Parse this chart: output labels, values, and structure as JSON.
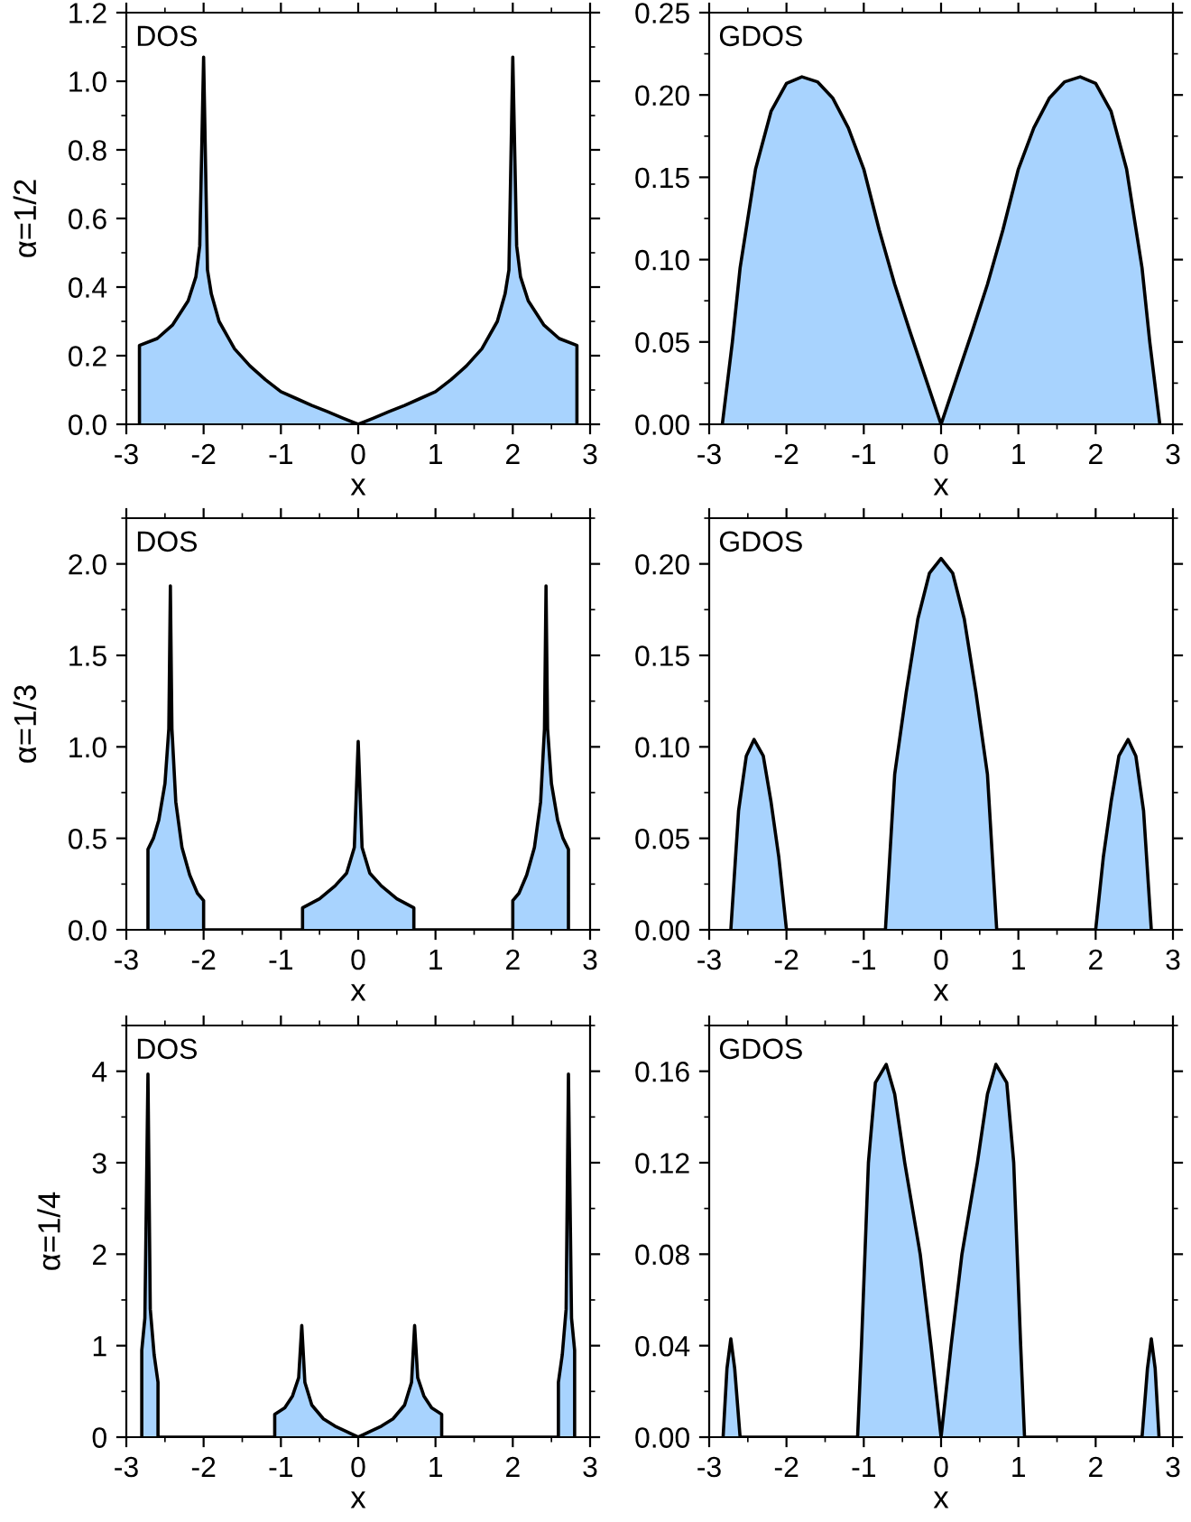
{
  "chart_data": [
    {
      "type": "area",
      "title": "DOS",
      "xlabel": "x",
      "ylabel": "α=1/2",
      "xlim": [
        -3,
        3
      ],
      "ylim": [
        0,
        1.2
      ],
      "xticks": [
        -3,
        -2,
        -1,
        0,
        1,
        2,
        3
      ],
      "yticks": [
        {
          "value": 0,
          "label": "0.0"
        },
        {
          "value": 0.2,
          "label": "0.2"
        },
        {
          "value": 0.4,
          "label": "0.4"
        },
        {
          "value": 0.6,
          "label": "0.6"
        },
        {
          "value": 0.8,
          "label": "0.8"
        },
        {
          "value": 1,
          "label": "1.0"
        },
        {
          "value": 1.2,
          "label": "1.2"
        }
      ],
      "x": [
        -2.83,
        -2.83,
        -2.6,
        -2.4,
        -2.2,
        -2.1,
        -2.05,
        -2.0,
        -1.95,
        -1.9,
        -1.8,
        -1.6,
        -1.4,
        -1.2,
        -1.0,
        -0.8,
        -0.6,
        -0.4,
        -0.2,
        0,
        0.2,
        0.4,
        0.6,
        0.8,
        1.0,
        1.2,
        1.4,
        1.6,
        1.8,
        1.9,
        1.95,
        2.0,
        2.05,
        2.1,
        2.2,
        2.4,
        2.6,
        2.83,
        2.83
      ],
      "series": [
        {
          "color": "#a8d3fe",
          "values": [
            0,
            0.23,
            0.25,
            0.29,
            0.36,
            0.43,
            0.52,
            1.07,
            0.45,
            0.38,
            0.3,
            0.22,
            0.17,
            0.13,
            0.095,
            0.075,
            0.055,
            0.037,
            0.018,
            0,
            0.018,
            0.037,
            0.055,
            0.075,
            0.095,
            0.13,
            0.17,
            0.22,
            0.3,
            0.38,
            0.45,
            1.07,
            0.52,
            0.43,
            0.36,
            0.29,
            0.25,
            0.23,
            0
          ]
        }
      ]
    },
    {
      "type": "area",
      "title": "GDOS",
      "xlabel": "x",
      "xlim": [
        -3,
        3
      ],
      "ylim": [
        0,
        0.25
      ],
      "xticks": [
        -3,
        -2,
        -1,
        0,
        1,
        2,
        3
      ],
      "yticks": [
        {
          "value": 0,
          "label": "0.00"
        },
        {
          "value": 0.05,
          "label": "0.05"
        },
        {
          "value": 0.1,
          "label": "0.10"
        },
        {
          "value": 0.15,
          "label": "0.15"
        },
        {
          "value": 0.2,
          "label": "0.20"
        },
        {
          "value": 0.25,
          "label": "0.25"
        }
      ],
      "x": [
        -2.83,
        -2.7,
        -2.6,
        -2.4,
        -2.2,
        -2.0,
        -1.8,
        -1.6,
        -1.4,
        -1.2,
        -1.0,
        -0.8,
        -0.6,
        -0.4,
        -0.2,
        0,
        0.2,
        0.4,
        0.6,
        0.8,
        1.0,
        1.2,
        1.4,
        1.6,
        1.8,
        2.0,
        2.2,
        2.4,
        2.6,
        2.7,
        2.83
      ],
      "series": [
        {
          "color": "#a8d3fe",
          "values": [
            0,
            0.05,
            0.095,
            0.155,
            0.19,
            0.207,
            0.211,
            0.208,
            0.198,
            0.18,
            0.155,
            0.118,
            0.085,
            0.056,
            0.028,
            0,
            0.028,
            0.056,
            0.085,
            0.118,
            0.155,
            0.18,
            0.198,
            0.208,
            0.211,
            0.207,
            0.19,
            0.155,
            0.095,
            0.05,
            0
          ]
        }
      ]
    },
    {
      "type": "area",
      "title": "DOS",
      "xlabel": "x",
      "ylabel": "α=1/3",
      "xlim": [
        -3,
        3
      ],
      "ylim": [
        0,
        2.25
      ],
      "xticks": [
        -3,
        -2,
        -1,
        0,
        1,
        2,
        3
      ],
      "yticks": [
        {
          "value": 0,
          "label": "0.0"
        },
        {
          "value": 0.5,
          "label": "0.5"
        },
        {
          "value": 1,
          "label": "1.0"
        },
        {
          "value": 1.5,
          "label": "1.5"
        },
        {
          "value": 2,
          "label": "2.0"
        }
      ],
      "x": [
        -2.72,
        -2.72,
        -2.65,
        -2.58,
        -2.5,
        -2.45,
        -2.43,
        -2.41,
        -2.36,
        -2.28,
        -2.18,
        -2.08,
        -2.0,
        -2.0,
        -0.72,
        -0.72,
        -0.5,
        -0.3,
        -0.15,
        -0.05,
        0,
        0.05,
        0.15,
        0.3,
        0.5,
        0.72,
        0.72,
        2.0,
        2.0,
        2.08,
        2.18,
        2.28,
        2.36,
        2.41,
        2.43,
        2.45,
        2.5,
        2.58,
        2.65,
        2.72,
        2.72
      ],
      "series": [
        {
          "color": "#a8d3fe",
          "values": [
            0,
            0.44,
            0.5,
            0.6,
            0.8,
            1.1,
            1.88,
            1.1,
            0.7,
            0.45,
            0.3,
            0.2,
            0.16,
            0,
            0,
            0.12,
            0.17,
            0.24,
            0.31,
            0.45,
            1.03,
            0.45,
            0.31,
            0.24,
            0.17,
            0.12,
            0,
            0,
            0.16,
            0.2,
            0.3,
            0.45,
            0.7,
            1.1,
            1.88,
            1.1,
            0.8,
            0.6,
            0.5,
            0.44,
            0
          ]
        }
      ]
    },
    {
      "type": "area",
      "title": "GDOS",
      "xlabel": "x",
      "xlim": [
        -3,
        3
      ],
      "ylim": [
        0,
        0.225
      ],
      "xticks": [
        -3,
        -2,
        -1,
        0,
        1,
        2,
        3
      ],
      "yticks": [
        {
          "value": 0,
          "label": "0.00"
        },
        {
          "value": 0.05,
          "label": "0.05"
        },
        {
          "value": 0.1,
          "label": "0.10"
        },
        {
          "value": 0.15,
          "label": "0.15"
        },
        {
          "value": 0.2,
          "label": "0.20"
        }
      ],
      "x": [
        -2.72,
        -2.62,
        -2.52,
        -2.42,
        -2.3,
        -2.2,
        -2.1,
        -2.0,
        -0.72,
        -0.6,
        -0.45,
        -0.3,
        -0.15,
        0,
        0.15,
        0.3,
        0.45,
        0.6,
        0.72,
        2.0,
        2.1,
        2.2,
        2.3,
        2.42,
        2.52,
        2.62,
        2.72
      ],
      "series": [
        {
          "color": "#a8d3fe",
          "values": [
            0,
            0.065,
            0.095,
            0.104,
            0.095,
            0.07,
            0.04,
            0,
            0,
            0.085,
            0.13,
            0.17,
            0.195,
            0.203,
            0.195,
            0.17,
            0.13,
            0.085,
            0,
            0,
            0.04,
            0.07,
            0.095,
            0.104,
            0.095,
            0.065,
            0
          ]
        }
      ]
    },
    {
      "type": "area",
      "title": "DOS",
      "xlabel": "x",
      "ylabel": "α=1/4",
      "xlim": [
        -3,
        3
      ],
      "ylim": [
        0,
        4.5
      ],
      "xticks": [
        -3,
        -2,
        -1,
        0,
        1,
        2,
        3
      ],
      "yticks": [
        0,
        1,
        2,
        3,
        4
      ],
      "x": [
        -2.8,
        -2.8,
        -2.76,
        -2.72,
        -2.69,
        -2.64,
        -2.59,
        -2.59,
        -1.08,
        -1.08,
        -0.95,
        -0.85,
        -0.77,
        -0.73,
        -0.69,
        -0.6,
        -0.45,
        -0.3,
        -0.15,
        0,
        0.15,
        0.3,
        0.45,
        0.6,
        0.69,
        0.73,
        0.77,
        0.85,
        0.95,
        1.08,
        1.08,
        2.59,
        2.59,
        2.64,
        2.69,
        2.72,
        2.76,
        2.8,
        2.8
      ],
      "series": [
        {
          "color": "#a8d3fe",
          "values": [
            0,
            0.95,
            1.3,
            3.97,
            1.4,
            0.9,
            0.6,
            0,
            0,
            0.25,
            0.32,
            0.45,
            0.65,
            1.22,
            0.6,
            0.35,
            0.2,
            0.12,
            0.06,
            0,
            0.06,
            0.12,
            0.2,
            0.35,
            0.6,
            1.22,
            0.65,
            0.45,
            0.32,
            0.25,
            0,
            0,
            0.6,
            0.9,
            1.4,
            3.97,
            1.3,
            0.95,
            0
          ]
        }
      ]
    },
    {
      "type": "area",
      "title": "GDOS",
      "xlabel": "x",
      "xlim": [
        -3,
        3
      ],
      "ylim": [
        0,
        0.18
      ],
      "xticks": [
        -3,
        -2,
        -1,
        0,
        1,
        2,
        3
      ],
      "yticks": [
        {
          "value": 0,
          "label": "0.00"
        },
        {
          "value": 0.04,
          "label": "0.04"
        },
        {
          "value": 0.08,
          "label": "0.08"
        },
        {
          "value": 0.12,
          "label": "0.12"
        },
        {
          "value": 0.16,
          "label": "0.16"
        }
      ],
      "x": [
        -2.82,
        -2.77,
        -2.72,
        -2.67,
        -2.6,
        -1.08,
        -1.03,
        -0.94,
        -0.85,
        -0.71,
        -0.6,
        -0.47,
        -0.27,
        -0.13,
        0,
        0.13,
        0.27,
        0.47,
        0.6,
        0.71,
        0.85,
        0.94,
        1.03,
        1.08,
        2.6,
        2.67,
        2.72,
        2.77,
        2.82
      ],
      "series": [
        {
          "color": "#a8d3fe",
          "values": [
            0,
            0.03,
            0.043,
            0.03,
            0,
            0,
            0.04,
            0.12,
            0.155,
            0.163,
            0.15,
            0.12,
            0.08,
            0.04,
            0,
            0.04,
            0.08,
            0.12,
            0.15,
            0.163,
            0.155,
            0.12,
            0.04,
            0,
            0,
            0.03,
            0.043,
            0.03,
            0
          ]
        }
      ]
    }
  ]
}
